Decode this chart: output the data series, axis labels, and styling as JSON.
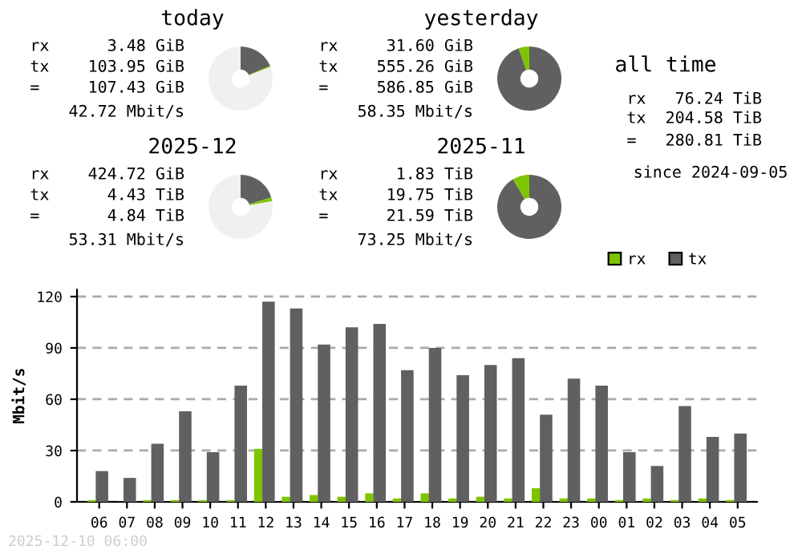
{
  "chart_data": [
    {
      "type": "donut",
      "title": "today",
      "categories": [
        null,
        null,
        null
      ],
      "values": [
        18.5,
        0.6,
        80.9
      ],
      "colors": [
        "#606060",
        "#7fc400",
        "#f0f0f0"
      ],
      "annotations": [
        "rx      3.48 GiB",
        "tx    103.95 GiB",
        "=     107.43 GiB",
        "  42.72 Mbit/s"
      ]
    },
    {
      "type": "donut",
      "title": "yesterday",
      "categories": [
        null,
        null
      ],
      "values": [
        94.6,
        5.4
      ],
      "colors": [
        "#606060",
        "#7fc400"
      ],
      "annotations": [
        "rx     31.60 GiB",
        "tx    555.26 GiB",
        "=     586.85 GiB",
        "  58.35 Mbit/s"
      ]
    },
    {
      "type": "donut",
      "title": "2025-12",
      "categories": [
        null,
        null,
        null
      ],
      "values": [
        20.3,
        1.9,
        77.8
      ],
      "colors": [
        "#606060",
        "#7fc400",
        "#f0f0f0"
      ],
      "annotations": [
        "rx    424.72 GiB",
        "tx      4.43 TiB",
        "=       4.84 TiB",
        "  53.31 Mbit/s"
      ]
    },
    {
      "type": "donut",
      "title": "2025-11",
      "categories": [
        null,
        null
      ],
      "values": [
        91.5,
        8.5
      ],
      "colors": [
        "#606060",
        "#7fc400"
      ],
      "annotations": [
        "rx      1.83 TiB",
        "tx     19.75 TiB",
        "=      21.59 TiB",
        "  73.25 Mbit/s"
      ]
    },
    {
      "type": "other",
      "title": "all time",
      "annotations": [
        "rx   76.24 TiB",
        "tx  204.58 TiB",
        "=   280.81 TiB",
        "since 2024-09-05"
      ]
    },
    {
      "type": "bar",
      "ylabel": "Mbit/s",
      "categories": [
        "06",
        "07",
        "08",
        "09",
        "10",
        "11",
        "12",
        "13",
        "14",
        "15",
        "16",
        "17",
        "18",
        "19",
        "20",
        "21",
        "22",
        "23",
        "00",
        "01",
        "02",
        "03",
        "04",
        "05"
      ],
      "series": [
        {
          "name": "rx",
          "color": "#7fc400",
          "values": [
            1,
            0,
            1,
            1,
            1,
            1,
            31,
            3,
            4,
            3,
            5,
            2,
            5,
            2,
            3,
            2,
            8,
            2,
            2,
            1,
            2,
            1,
            2,
            1
          ]
        },
        {
          "name": "tx",
          "color": "#606060",
          "values": [
            18,
            14,
            34,
            53,
            29,
            68,
            117,
            113,
            92,
            102,
            104,
            77,
            90,
            74,
            80,
            84,
            51,
            72,
            68,
            29,
            21,
            56,
            38,
            40
          ]
        }
      ],
      "ylim": [
        0,
        124
      ],
      "yticks": [
        0,
        30,
        60,
        90,
        120
      ],
      "grid": "y",
      "legend": "top right",
      "annotations": [
        "2025-12-10 06:00"
      ]
    }
  ]
}
